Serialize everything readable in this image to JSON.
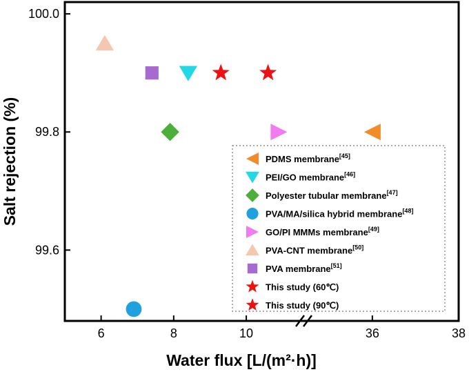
{
  "chart_data": {
    "type": "scatter",
    "title": "",
    "xlabel": "Water flux [L/(m²·h)]",
    "ylabel": "Salt rejection (%)",
    "ylim": [
      99.48,
      100.02
    ],
    "x_axis_break": true,
    "x_ticks_left": [
      6,
      8,
      10
    ],
    "x_ticks_right": [
      36,
      38
    ],
    "xlim_left": [
      5,
      11.5
    ],
    "xlim_right": [
      34.5,
      38
    ],
    "y_ticks": [
      {
        "value": 99.6,
        "label": "99.6"
      },
      {
        "value": 99.8,
        "label": "99.8"
      },
      {
        "value": 100.0,
        "label": "100.0"
      }
    ],
    "legend_position": "bottom-right",
    "series": [
      {
        "name": "PDMS membrane",
        "ref": "[45]",
        "marker": "triangle-left",
        "color": "#F28C28",
        "points": [
          {
            "x": 36.0,
            "y": 99.8
          }
        ]
      },
      {
        "name": "PEI/GO membrane",
        "ref": "[46]",
        "marker": "triangle-down",
        "color": "#22D8E6",
        "points": [
          {
            "x": 8.4,
            "y": 99.9
          }
        ]
      },
      {
        "name": "Polyester tubular membrane",
        "ref": "[47]",
        "marker": "diamond",
        "color": "#4CAF3A",
        "points": [
          {
            "x": 7.9,
            "y": 99.8
          }
        ]
      },
      {
        "name": "PVA/MA/silica hybrid membrane",
        "ref": "[48]",
        "marker": "circle",
        "color": "#1FA1DF",
        "points": [
          {
            "x": 6.9,
            "y": 99.5
          }
        ]
      },
      {
        "name": "GO/PI MMMs membrane",
        "ref": "[49]",
        "marker": "triangle-right",
        "color": "#F07CF0",
        "points": [
          {
            "x": 10.9,
            "y": 99.8
          }
        ]
      },
      {
        "name": "PVA-CNT membrane",
        "ref": "[50]",
        "marker": "triangle-up",
        "color": "#F5C6B0",
        "points": [
          {
            "x": 6.1,
            "y": 99.95
          }
        ]
      },
      {
        "name": "PVA membrane",
        "ref": "[51]",
        "marker": "square",
        "color": "#A66BD0",
        "points": [
          {
            "x": 7.4,
            "y": 99.9
          }
        ]
      },
      {
        "name": "This study (60℃)",
        "ref": "",
        "marker": "star",
        "color": "#EE1111",
        "points": [
          {
            "x": 9.3,
            "y": 99.9
          }
        ]
      },
      {
        "name": "This study (90℃)",
        "ref": "",
        "marker": "star",
        "color": "#EE1111",
        "points": [
          {
            "x": 10.6,
            "y": 99.9
          }
        ]
      }
    ]
  }
}
